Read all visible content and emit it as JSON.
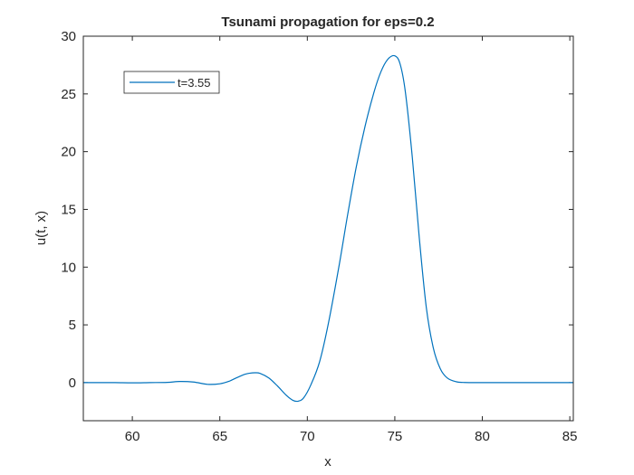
{
  "chart_data": {
    "type": "line",
    "title": "Tsunami propagation for eps=0.2",
    "xlabel": "x",
    "ylabel": "u(t, x)",
    "xlim": [
      57.2,
      85.2
    ],
    "ylim": [
      -3.3,
      30
    ],
    "xticks": [
      60,
      65,
      70,
      75,
      80,
      85
    ],
    "yticks": [
      0,
      5,
      10,
      15,
      20,
      25,
      30
    ],
    "grid": false,
    "legend": {
      "placement": "top-left"
    },
    "series": [
      {
        "name": "t=3.55",
        "color": "#0072BD",
        "x": [
          57.2,
          58,
          59,
          60,
          61,
          62,
          62.7,
          63.5,
          64.3,
          65,
          65.5,
          66,
          66.5,
          67,
          67.3,
          67.8,
          68.3,
          68.8,
          69.2,
          69.5,
          69.8,
          70.2,
          70.7,
          71.2,
          71.8,
          72.3,
          72.8,
          73.3,
          73.8,
          74.2,
          74.6,
          75,
          75.3,
          75.6,
          76,
          76.4,
          76.8,
          77.2,
          77.6,
          78,
          78.5,
          79,
          80,
          81,
          82,
          83,
          84,
          85.2
        ],
        "y": [
          0,
          0,
          0,
          -0.02,
          0,
          0.02,
          0.1,
          0.05,
          -0.15,
          -0.1,
          0.1,
          0.45,
          0.75,
          0.85,
          0.8,
          0.4,
          -0.3,
          -1.1,
          -1.55,
          -1.6,
          -1.3,
          -0.2,
          1.8,
          5.1,
          10,
          14.5,
          18.7,
          22.2,
          25.1,
          26.9,
          28.0,
          28.3,
          27.6,
          25.2,
          19.5,
          12.5,
          6.5,
          3,
          1.2,
          0.4,
          0.08,
          0.01,
          0,
          0,
          0,
          0,
          0,
          0
        ]
      }
    ]
  }
}
